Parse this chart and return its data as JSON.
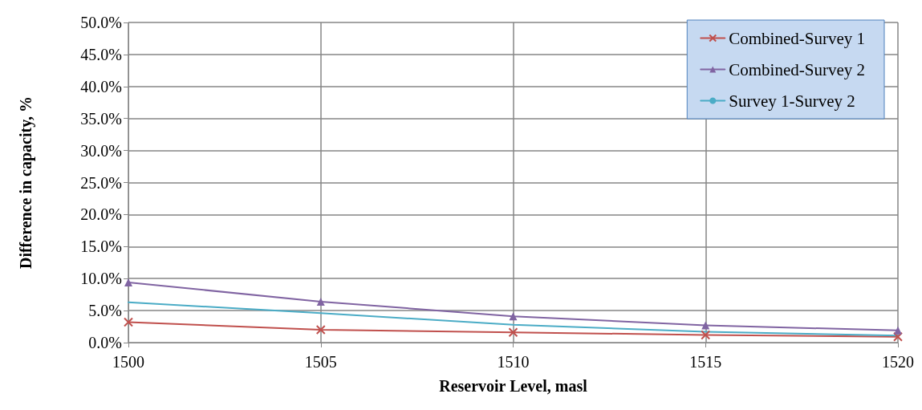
{
  "chart_data": {
    "type": "line",
    "xlabel": "Reservoir Level, masl",
    "ylabel": "Difference in capacity, %",
    "x": [
      1500,
      1505,
      1510,
      1515,
      1520
    ],
    "series": [
      {
        "name": "Combined-Survey 1",
        "color": "#c0504d",
        "marker": "cross",
        "values": [
          3.2,
          2.0,
          1.6,
          1.2,
          0.9
        ]
      },
      {
        "name": "Combined-Survey 2",
        "color": "#8064a2",
        "marker": "triangle",
        "values": [
          9.4,
          6.4,
          4.1,
          2.7,
          1.9
        ]
      },
      {
        "name": "Survey 1-Survey 2",
        "color": "#4bacc6",
        "marker": "none",
        "values": [
          6.3,
          4.6,
          2.8,
          1.7,
          1.1
        ]
      }
    ],
    "xlim": [
      1500,
      1520
    ],
    "xticks": [
      1500,
      1505,
      1510,
      1515,
      1520
    ],
    "ylim": [
      0,
      50
    ],
    "yticks": [
      {
        "value": 0,
        "label": "0.0%"
      },
      {
        "value": 5,
        "label": "5.0%"
      },
      {
        "value": 10,
        "label": "10.0%"
      },
      {
        "value": 15,
        "label": "15.0%"
      },
      {
        "value": 20,
        "label": "20.0%"
      },
      {
        "value": 25,
        "label": "25.0%"
      },
      {
        "value": 30,
        "label": "30.0%"
      },
      {
        "value": 35,
        "label": "35.0%"
      },
      {
        "value": 40,
        "label": "40.0%"
      },
      {
        "value": 45,
        "label": "45.0%"
      },
      {
        "value": 50,
        "label": "50.0%"
      }
    ],
    "grid": true,
    "legend": "top right"
  }
}
